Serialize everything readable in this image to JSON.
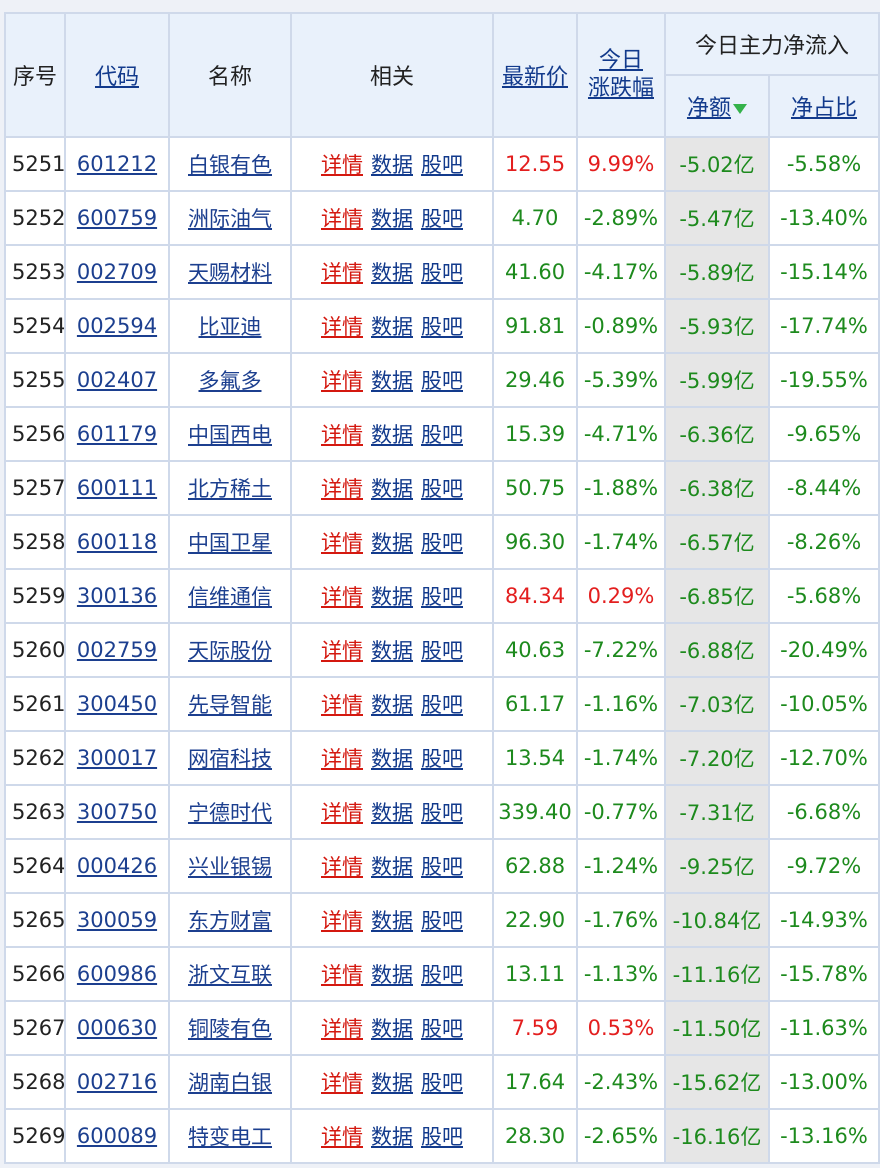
{
  "header": {
    "seq": "序号",
    "code": "代码",
    "name": "名称",
    "related": "相关",
    "price": "最新价",
    "change_l1": "今日",
    "change_l2": "涨跌幅",
    "flow_group": "今日主力净流入",
    "net_amount": "净额",
    "net_ratio": "净占比"
  },
  "related_labels": {
    "detail": "详情",
    "data": "数据",
    "forum": "股吧"
  },
  "colors": {
    "up": "#e31e1e",
    "down": "#1d8a1d",
    "link": "#123a8c",
    "grid": "#cfd9ea",
    "header_bg": "#e9f1fb",
    "sorted_col_bg": "#e6e6e6"
  },
  "icons": {
    "sort_desc": "green-down-arrow-icon"
  },
  "rows": [
    {
      "seq": "5251",
      "code": "601212",
      "name": "白银有色",
      "price": "12.55",
      "change": "9.99%",
      "dir": "up",
      "net": "-5.02亿",
      "ratio": "-5.58%"
    },
    {
      "seq": "5252",
      "code": "600759",
      "name": "洲际油气",
      "price": "4.70",
      "change": "-2.89%",
      "dir": "down",
      "net": "-5.47亿",
      "ratio": "-13.40%"
    },
    {
      "seq": "5253",
      "code": "002709",
      "name": "天赐材料",
      "price": "41.60",
      "change": "-4.17%",
      "dir": "down",
      "net": "-5.89亿",
      "ratio": "-15.14%"
    },
    {
      "seq": "5254",
      "code": "002594",
      "name": "比亚迪",
      "price": "91.81",
      "change": "-0.89%",
      "dir": "down",
      "net": "-5.93亿",
      "ratio": "-17.74%"
    },
    {
      "seq": "5255",
      "code": "002407",
      "name": "多氟多",
      "price": "29.46",
      "change": "-5.39%",
      "dir": "down",
      "net": "-5.99亿",
      "ratio": "-19.55%"
    },
    {
      "seq": "5256",
      "code": "601179",
      "name": "中国西电",
      "price": "15.39",
      "change": "-4.71%",
      "dir": "down",
      "net": "-6.36亿",
      "ratio": "-9.65%"
    },
    {
      "seq": "5257",
      "code": "600111",
      "name": "北方稀土",
      "price": "50.75",
      "change": "-1.88%",
      "dir": "down",
      "net": "-6.38亿",
      "ratio": "-8.44%"
    },
    {
      "seq": "5258",
      "code": "600118",
      "name": "中国卫星",
      "price": "96.30",
      "change": "-1.74%",
      "dir": "down",
      "net": "-6.57亿",
      "ratio": "-8.26%"
    },
    {
      "seq": "5259",
      "code": "300136",
      "name": "信维通信",
      "price": "84.34",
      "change": "0.29%",
      "dir": "up",
      "net": "-6.85亿",
      "ratio": "-5.68%"
    },
    {
      "seq": "5260",
      "code": "002759",
      "name": "天际股份",
      "price": "40.63",
      "change": "-7.22%",
      "dir": "down",
      "net": "-6.88亿",
      "ratio": "-20.49%"
    },
    {
      "seq": "5261",
      "code": "300450",
      "name": "先导智能",
      "price": "61.17",
      "change": "-1.16%",
      "dir": "down",
      "net": "-7.03亿",
      "ratio": "-10.05%"
    },
    {
      "seq": "5262",
      "code": "300017",
      "name": "网宿科技",
      "price": "13.54",
      "change": "-1.74%",
      "dir": "down",
      "net": "-7.20亿",
      "ratio": "-12.70%"
    },
    {
      "seq": "5263",
      "code": "300750",
      "name": "宁德时代",
      "price": "339.40",
      "change": "-0.77%",
      "dir": "down",
      "net": "-7.31亿",
      "ratio": "-6.68%"
    },
    {
      "seq": "5264",
      "code": "000426",
      "name": "兴业银锡",
      "price": "62.88",
      "change": "-1.24%",
      "dir": "down",
      "net": "-9.25亿",
      "ratio": "-9.72%"
    },
    {
      "seq": "5265",
      "code": "300059",
      "name": "东方财富",
      "price": "22.90",
      "change": "-1.76%",
      "dir": "down",
      "net": "-10.84亿",
      "ratio": "-14.93%"
    },
    {
      "seq": "5266",
      "code": "600986",
      "name": "浙文互联",
      "price": "13.11",
      "change": "-1.13%",
      "dir": "down",
      "net": "-11.16亿",
      "ratio": "-15.78%"
    },
    {
      "seq": "5267",
      "code": "000630",
      "name": "铜陵有色",
      "price": "7.59",
      "change": "0.53%",
      "dir": "up",
      "net": "-11.50亿",
      "ratio": "-11.63%"
    },
    {
      "seq": "5268",
      "code": "002716",
      "name": "湖南白银",
      "price": "17.64",
      "change": "-2.43%",
      "dir": "down",
      "net": "-15.62亿",
      "ratio": "-13.00%"
    },
    {
      "seq": "5269",
      "code": "600089",
      "name": "特变电工",
      "price": "28.30",
      "change": "-2.65%",
      "dir": "down",
      "net": "-16.16亿",
      "ratio": "-13.16%"
    }
  ]
}
